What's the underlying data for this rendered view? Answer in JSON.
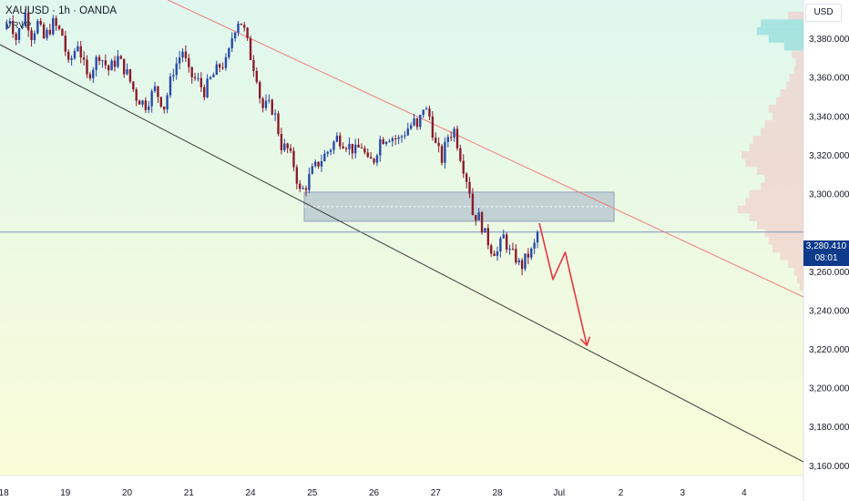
{
  "header": {
    "title": "XAUUSD · 1h · OANDA",
    "indicator": "VRVP",
    "currency_button": "USD"
  },
  "colors": {
    "up_candle": "#2848a8",
    "down_candle": "#8a1a2a",
    "upper_trendline": "#f07a7a",
    "lower_trendline": "#3a3a3a",
    "zone_fill": "#9eb1c7",
    "projection_arrow": "#e8343f",
    "price_line": "#7d8fc8",
    "price_tag_bg": "#0d3a8a",
    "background_top": "#dff7ee",
    "background_bottom": "#fafcd8"
  },
  "price_tag": {
    "price": "3,280.410",
    "countdown": "08:01"
  },
  "chart_data": {
    "type": "candlestick",
    "title": "XAUUSD · 1h · OANDA",
    "xlabel": "",
    "ylabel": "",
    "ylim": [
      3155,
      3400
    ],
    "y_ticks": [
      "3,380.000",
      "3,360.000",
      "3,340.000",
      "3,320.000",
      "3,300.000",
      "3,260.000",
      "3,240.000",
      "3,220.000",
      "3,200.000",
      "3,180.000",
      "3,160.000"
    ],
    "y_tick_values": [
      3380,
      3360,
      3340,
      3320,
      3300,
      3260,
      3240,
      3220,
      3200,
      3180,
      3160
    ],
    "x_ticks": [
      "18",
      "19",
      "20",
      "21",
      "24",
      "25",
      "26",
      "27",
      "28",
      "Jul",
      "2",
      "3",
      "4"
    ],
    "x_tick_values": [
      0,
      1,
      2,
      3,
      4,
      5,
      6,
      7,
      8,
      9,
      10,
      11,
      12
    ],
    "xlim": [
      -0.06,
      12.96
    ],
    "current_price": 3280.41,
    "candle_anchors": [
      [
        0.0,
        3385
      ],
      [
        0.1,
        3391
      ],
      [
        0.2,
        3380
      ],
      [
        0.35,
        3393
      ],
      [
        0.45,
        3382
      ],
      [
        0.55,
        3388
      ],
      [
        0.65,
        3380
      ],
      [
        0.8,
        3388
      ],
      [
        0.95,
        3382
      ],
      [
        1.05,
        3366
      ],
      [
        1.2,
        3378
      ],
      [
        1.35,
        3360
      ],
      [
        1.55,
        3372
      ],
      [
        1.7,
        3364
      ],
      [
        1.85,
        3370
      ],
      [
        2.0,
        3362
      ],
      [
        2.15,
        3350
      ],
      [
        2.3,
        3346
      ],
      [
        2.45,
        3354
      ],
      [
        2.6,
        3345
      ],
      [
        2.75,
        3364
      ],
      [
        2.9,
        3374
      ],
      [
        3.0,
        3362
      ],
      [
        3.15,
        3358
      ],
      [
        3.25,
        3353
      ],
      [
        3.35,
        3359
      ],
      [
        3.5,
        3366
      ],
      [
        3.62,
        3368
      ],
      [
        3.72,
        3384
      ],
      [
        3.82,
        3391
      ],
      [
        3.9,
        3384
      ],
      [
        4.0,
        3371
      ],
      [
        4.1,
        3361
      ],
      [
        4.18,
        3344
      ],
      [
        4.28,
        3346
      ],
      [
        4.38,
        3343
      ],
      [
        4.5,
        3325
      ],
      [
        4.6,
        3323
      ],
      [
        4.7,
        3315
      ],
      [
        4.8,
        3301
      ],
      [
        4.88,
        3303
      ],
      [
        4.98,
        3311
      ],
      [
        5.1,
        3316
      ],
      [
        5.2,
        3320
      ],
      [
        5.3,
        3324
      ],
      [
        5.4,
        3329
      ],
      [
        5.55,
        3326
      ],
      [
        5.7,
        3322
      ],
      [
        5.8,
        3325
      ],
      [
        5.9,
        3316
      ],
      [
        6.0,
        3318
      ],
      [
        6.1,
        3328
      ],
      [
        6.25,
        3330
      ],
      [
        6.4,
        3328
      ],
      [
        6.55,
        3334
      ],
      [
        6.65,
        3337
      ],
      [
        6.7,
        3333
      ],
      [
        6.8,
        3345
      ],
      [
        6.9,
        3340
      ],
      [
        7.0,
        3325
      ],
      [
        7.1,
        3318
      ],
      [
        7.2,
        3330
      ],
      [
        7.3,
        3333
      ],
      [
        7.4,
        3320
      ],
      [
        7.55,
        3302
      ],
      [
        7.6,
        3290
      ],
      [
        7.7,
        3288
      ],
      [
        7.8,
        3279
      ],
      [
        7.9,
        3272
      ],
      [
        8.0,
        3270
      ],
      [
        8.1,
        3278
      ],
      [
        8.2,
        3270
      ],
      [
        8.3,
        3267
      ],
      [
        8.38,
        3262
      ],
      [
        8.48,
        3268
      ],
      [
        8.58,
        3271
      ],
      [
        8.65,
        3280
      ]
    ],
    "supply_zone": {
      "x_start": 4.87,
      "x_end": 9.89,
      "price_low": 3286,
      "price_high": 3301
    },
    "upper_trendline": {
      "x1": 2.66,
      "p1": 3400,
      "x2": 12.96,
      "p2": 3247
    },
    "lower_trendline": {
      "x1": -0.06,
      "p1": 3377,
      "x2": 12.96,
      "p2": 3162
    },
    "projection": [
      [
        8.68,
        3285
      ],
      [
        8.9,
        3256
      ],
      [
        9.1,
        3270
      ],
      [
        9.45,
        3222
      ]
    ],
    "volume_profile_bins": [
      [
        3392,
        0.2
      ],
      [
        3388,
        0.55
      ],
      [
        3384,
        0.6
      ],
      [
        3380,
        0.45
      ],
      [
        3376,
        0.25
      ],
      [
        3372,
        0.15
      ],
      [
        3368,
        0.1
      ],
      [
        3364,
        0.12
      ],
      [
        3360,
        0.18
      ],
      [
        3356,
        0.22
      ],
      [
        3352,
        0.3
      ],
      [
        3348,
        0.35
      ],
      [
        3344,
        0.45
      ],
      [
        3340,
        0.4
      ],
      [
        3336,
        0.5
      ],
      [
        3332,
        0.55
      ],
      [
        3328,
        0.65
      ],
      [
        3324,
        0.7
      ],
      [
        3320,
        0.8
      ],
      [
        3316,
        0.75
      ],
      [
        3312,
        0.6
      ],
      [
        3308,
        0.5
      ],
      [
        3304,
        0.55
      ],
      [
        3300,
        0.7
      ],
      [
        3296,
        0.75
      ],
      [
        3292,
        0.85
      ],
      [
        3288,
        0.7
      ],
      [
        3284,
        0.6
      ],
      [
        3280,
        0.5
      ],
      [
        3276,
        0.45
      ],
      [
        3272,
        0.4
      ],
      [
        3268,
        0.3
      ],
      [
        3264,
        0.2
      ],
      [
        3260,
        0.12
      ],
      [
        3256,
        0.08
      ],
      [
        3252,
        0.05
      ]
    ]
  }
}
